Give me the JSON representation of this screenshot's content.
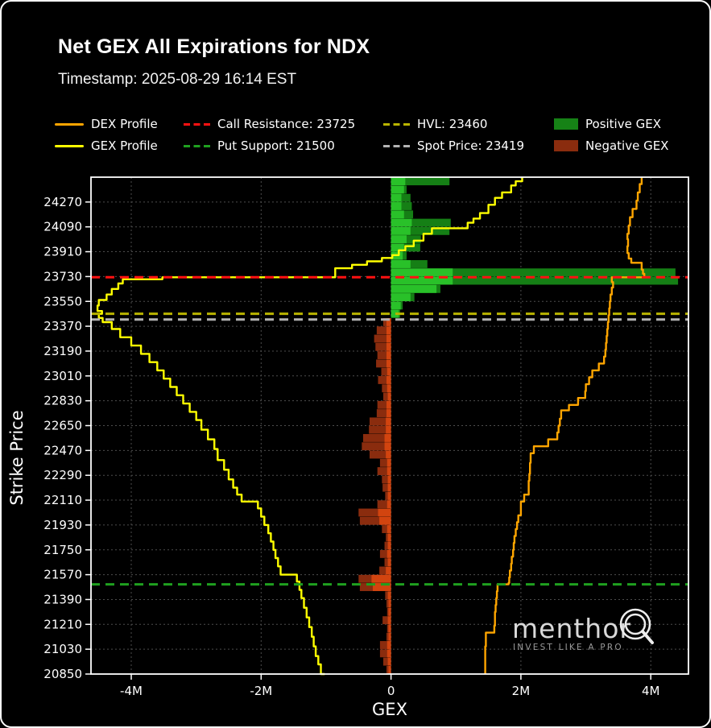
{
  "title": "Net GEX All Expirations for NDX",
  "subtitle": "Timestamp: 2025-08-29 16:14 EST",
  "legend": {
    "items": [
      {
        "label": "DEX Profile",
        "type": "line",
        "color": "#ffa500"
      },
      {
        "label": "Call Resistance: 23725",
        "type": "dash",
        "color": "#ff1111"
      },
      {
        "label": "HVL: 23460",
        "type": "dash",
        "color": "#b9b400"
      },
      {
        "label": "Positive GEX",
        "type": "rect",
        "color": "#168216"
      },
      {
        "label": "GEX Profile",
        "type": "line",
        "color": "#ffff00"
      },
      {
        "label": "Put Support: 21500",
        "type": "dash",
        "color": "#1fa01f"
      },
      {
        "label": "Spot Price: 23419",
        "type": "dash",
        "color": "#b3b3b3"
      },
      {
        "label": "Negative GEX",
        "type": "rect",
        "color": "#8a2c0e"
      }
    ]
  },
  "watermark": {
    "brand": "menthor",
    "tagline": "INVEST LIKE A PRO"
  },
  "colors": {
    "dex": "#ffa500",
    "gex": "#ffff00",
    "call_resistance": "#ff1111",
    "put_support": "#1fa01f",
    "hvl": "#b9b400",
    "spot": "#b3b3b3",
    "pos_outer": "#157f15",
    "pos_inner": "#29c129",
    "neg_outer": "#8a2c0e",
    "neg_inner": "#d2440f",
    "grid": "#4d4d4d",
    "spine": "#ffffff",
    "text": "#ffffff"
  },
  "chart_data": {
    "type": "bar",
    "orientation": "horizontal",
    "title": "Net GEX All Expirations for NDX",
    "xlabel": "GEX",
    "ylabel": "Strike Price",
    "xlim": [
      -4.62,
      4.58
    ],
    "ylim": [
      20850,
      24450
    ],
    "x_tick_values": [
      -4,
      -2,
      0,
      2,
      4
    ],
    "x_tick_labels": [
      "-4M",
      "-2M",
      "0",
      "2M",
      "4M"
    ],
    "y_ticks": [
      24270,
      24090,
      23910,
      23730,
      23550,
      23370,
      23190,
      23010,
      22830,
      22650,
      22470,
      22290,
      22110,
      21930,
      21750,
      21570,
      21390,
      21210,
      21030,
      20850
    ],
    "levels": {
      "call_resistance": 23725,
      "hvl": 23460,
      "spot_price": 23419,
      "put_support": 21500
    },
    "units": "millions GEX",
    "bars": [
      [
        24420,
        0.9,
        0.22
      ],
      [
        24360,
        0.24,
        0.2
      ],
      [
        24300,
        0.3,
        0.16
      ],
      [
        24240,
        0.32,
        0.16
      ],
      [
        24180,
        0.34,
        0.2
      ],
      [
        24120,
        0.92,
        0.32
      ],
      [
        24060,
        0.9,
        0.3
      ],
      [
        24000,
        0.46,
        0.24
      ],
      [
        23940,
        0.45,
        0.2
      ],
      [
        23880,
        0.24,
        0.18
      ],
      [
        23820,
        0.56,
        0.3
      ],
      [
        23760,
        4.38,
        0.95
      ],
      [
        23700,
        4.42,
        0.95
      ],
      [
        23640,
        0.76,
        0.7
      ],
      [
        23580,
        0.36,
        0.3
      ],
      [
        23520,
        0.18,
        0.15
      ],
      [
        23460,
        0.14,
        0.12
      ],
      [
        23400,
        -0.12,
        -0.07
      ],
      [
        23340,
        -0.22,
        -0.07
      ],
      [
        23280,
        -0.26,
        -0.07
      ],
      [
        23220,
        -0.24,
        -0.07
      ],
      [
        23160,
        -0.21,
        -0.07
      ],
      [
        23100,
        -0.23,
        -0.07
      ],
      [
        23040,
        -0.15,
        -0.06
      ],
      [
        22980,
        -0.2,
        -0.07
      ],
      [
        22920,
        -0.14,
        -0.06
      ],
      [
        22860,
        -0.12,
        -0.05
      ],
      [
        22800,
        -0.21,
        -0.07
      ],
      [
        22740,
        -0.22,
        -0.07
      ],
      [
        22680,
        -0.33,
        -0.08
      ],
      [
        22620,
        -0.34,
        -0.08
      ],
      [
        22560,
        -0.43,
        -0.1
      ],
      [
        22500,
        -0.45,
        -0.1
      ],
      [
        22440,
        -0.33,
        -0.08
      ],
      [
        22380,
        -0.17,
        -0.06
      ],
      [
        22320,
        -0.21,
        -0.06
      ],
      [
        22260,
        -0.14,
        -0.05
      ],
      [
        22200,
        -0.13,
        -0.05
      ],
      [
        22140,
        -0.09,
        -0.05
      ],
      [
        22080,
        -0.21,
        -0.06
      ],
      [
        22020,
        -0.5,
        -0.2
      ],
      [
        21960,
        -0.48,
        -0.18
      ],
      [
        21900,
        -0.14,
        -0.06
      ],
      [
        21840,
        -0.08,
        -0.05
      ],
      [
        21780,
        -0.1,
        -0.05
      ],
      [
        21720,
        -0.17,
        -0.06
      ],
      [
        21660,
        -0.1,
        -0.05
      ],
      [
        21600,
        -0.18,
        -0.08
      ],
      [
        21540,
        -0.5,
        -0.3
      ],
      [
        21480,
        -0.48,
        -0.28
      ],
      [
        21420,
        -0.09,
        -0.05
      ],
      [
        21360,
        -0.07,
        -0.04
      ],
      [
        21300,
        -0.06,
        -0.04
      ],
      [
        21240,
        -0.13,
        -0.05
      ],
      [
        21180,
        -0.06,
        -0.04
      ],
      [
        21120,
        -0.07,
        -0.04
      ],
      [
        21060,
        -0.17,
        -0.06
      ],
      [
        21000,
        -0.17,
        -0.06
      ],
      [
        20940,
        -0.12,
        -0.05
      ],
      [
        20880,
        -0.07,
        -0.04
      ]
    ],
    "series": [
      {
        "name": "GEX Profile",
        "points": [
          [
            24450,
            2.02
          ],
          [
            24420,
            1.92
          ],
          [
            24390,
            1.85
          ],
          [
            24340,
            1.71
          ],
          [
            24300,
            1.6
          ],
          [
            24250,
            1.5
          ],
          [
            24190,
            1.37
          ],
          [
            24150,
            1.27
          ],
          [
            24120,
            1.18
          ],
          [
            24080,
            0.63
          ],
          [
            24040,
            0.5
          ],
          [
            23990,
            0.35
          ],
          [
            23950,
            0.22
          ],
          [
            23920,
            0.12
          ],
          [
            23885,
            0.02
          ],
          [
            23865,
            -0.14
          ],
          [
            23840,
            -0.37
          ],
          [
            23815,
            -0.6
          ],
          [
            23790,
            -0.86
          ],
          [
            23725,
            -3.52
          ],
          [
            23710,
            -4.13
          ],
          [
            23680,
            -4.2
          ],
          [
            23640,
            -4.3
          ],
          [
            23600,
            -4.38
          ],
          [
            23560,
            -4.5
          ],
          [
            23520,
            -4.52
          ],
          [
            23480,
            -4.45
          ],
          [
            23460,
            -4.5
          ],
          [
            23430,
            -4.44
          ],
          [
            23400,
            -4.3
          ],
          [
            23350,
            -4.17
          ],
          [
            23290,
            -4.0
          ],
          [
            23230,
            -3.85
          ],
          [
            23170,
            -3.72
          ],
          [
            23110,
            -3.6
          ],
          [
            23050,
            -3.5
          ],
          [
            22990,
            -3.4
          ],
          [
            22930,
            -3.3
          ],
          [
            22870,
            -3.2
          ],
          [
            22810,
            -3.1
          ],
          [
            22750,
            -3.0
          ],
          [
            22690,
            -2.92
          ],
          [
            22620,
            -2.82
          ],
          [
            22550,
            -2.72
          ],
          [
            22480,
            -2.67
          ],
          [
            22400,
            -2.57
          ],
          [
            22330,
            -2.5
          ],
          [
            22260,
            -2.43
          ],
          [
            22200,
            -2.37
          ],
          [
            22150,
            -2.3
          ],
          [
            22100,
            -2.05
          ],
          [
            22050,
            -2.0
          ],
          [
            21990,
            -1.95
          ],
          [
            21930,
            -1.89
          ],
          [
            21870,
            -1.85
          ],
          [
            21810,
            -1.81
          ],
          [
            21750,
            -1.78
          ],
          [
            21690,
            -1.74
          ],
          [
            21630,
            -1.7
          ],
          [
            21570,
            -1.45
          ],
          [
            21520,
            -1.41
          ],
          [
            21460,
            -1.38
          ],
          [
            21400,
            -1.34
          ],
          [
            21330,
            -1.3
          ],
          [
            21260,
            -1.26
          ],
          [
            21190,
            -1.22
          ],
          [
            21120,
            -1.19
          ],
          [
            21050,
            -1.16
          ],
          [
            20980,
            -1.12
          ],
          [
            20920,
            -1.08
          ],
          [
            20850,
            -1.02
          ]
        ]
      },
      {
        "name": "DEX Profile",
        "points": [
          [
            24450,
            3.86
          ],
          [
            24400,
            3.83
          ],
          [
            24340,
            3.8
          ],
          [
            24280,
            3.78
          ],
          [
            24220,
            3.72
          ],
          [
            24160,
            3.68
          ],
          [
            24100,
            3.66
          ],
          [
            24040,
            3.64
          ],
          [
            24000,
            3.65
          ],
          [
            23950,
            3.64
          ],
          [
            23900,
            3.66
          ],
          [
            23860,
            3.7
          ],
          [
            23830,
            3.86
          ],
          [
            23780,
            3.88
          ],
          [
            23750,
            3.9
          ],
          [
            23725,
            3.4
          ],
          [
            23690,
            3.42
          ],
          [
            23650,
            3.4
          ],
          [
            23600,
            3.38
          ],
          [
            23550,
            3.37
          ],
          [
            23500,
            3.36
          ],
          [
            23450,
            3.35
          ],
          [
            23400,
            3.34
          ],
          [
            23350,
            3.33
          ],
          [
            23300,
            3.32
          ],
          [
            23250,
            3.31
          ],
          [
            23200,
            3.3
          ],
          [
            23150,
            3.28
          ],
          [
            23100,
            3.2
          ],
          [
            23050,
            3.1
          ],
          [
            23000,
            3.05
          ],
          [
            22950,
            3.0
          ],
          [
            22900,
            2.99
          ],
          [
            22850,
            2.88
          ],
          [
            22800,
            2.74
          ],
          [
            22760,
            2.62
          ],
          [
            22700,
            2.6
          ],
          [
            22650,
            2.58
          ],
          [
            22600,
            2.56
          ],
          [
            22550,
            2.42
          ],
          [
            22500,
            2.2
          ],
          [
            22450,
            2.15
          ],
          [
            22380,
            2.14
          ],
          [
            22300,
            2.13
          ],
          [
            22250,
            2.12
          ],
          [
            22150,
            2.05
          ],
          [
            22100,
            2.0
          ],
          [
            22000,
            1.96
          ],
          [
            21950,
            1.94
          ],
          [
            21900,
            1.92
          ],
          [
            21850,
            1.9
          ],
          [
            21800,
            1.89
          ],
          [
            21750,
            1.88
          ],
          [
            21700,
            1.86
          ],
          [
            21650,
            1.85
          ],
          [
            21600,
            1.83
          ],
          [
            21550,
            1.82
          ],
          [
            21510,
            1.81
          ],
          [
            21500,
            1.64
          ],
          [
            21450,
            1.63
          ],
          [
            21400,
            1.62
          ],
          [
            21350,
            1.61
          ],
          [
            21300,
            1.6
          ],
          [
            21250,
            1.6
          ],
          [
            21200,
            1.59
          ],
          [
            21150,
            1.46
          ],
          [
            21100,
            1.46
          ],
          [
            21050,
            1.45
          ],
          [
            21000,
            1.45
          ],
          [
            20950,
            1.45
          ],
          [
            20900,
            1.45
          ],
          [
            20850,
            1.45
          ]
        ]
      }
    ]
  }
}
